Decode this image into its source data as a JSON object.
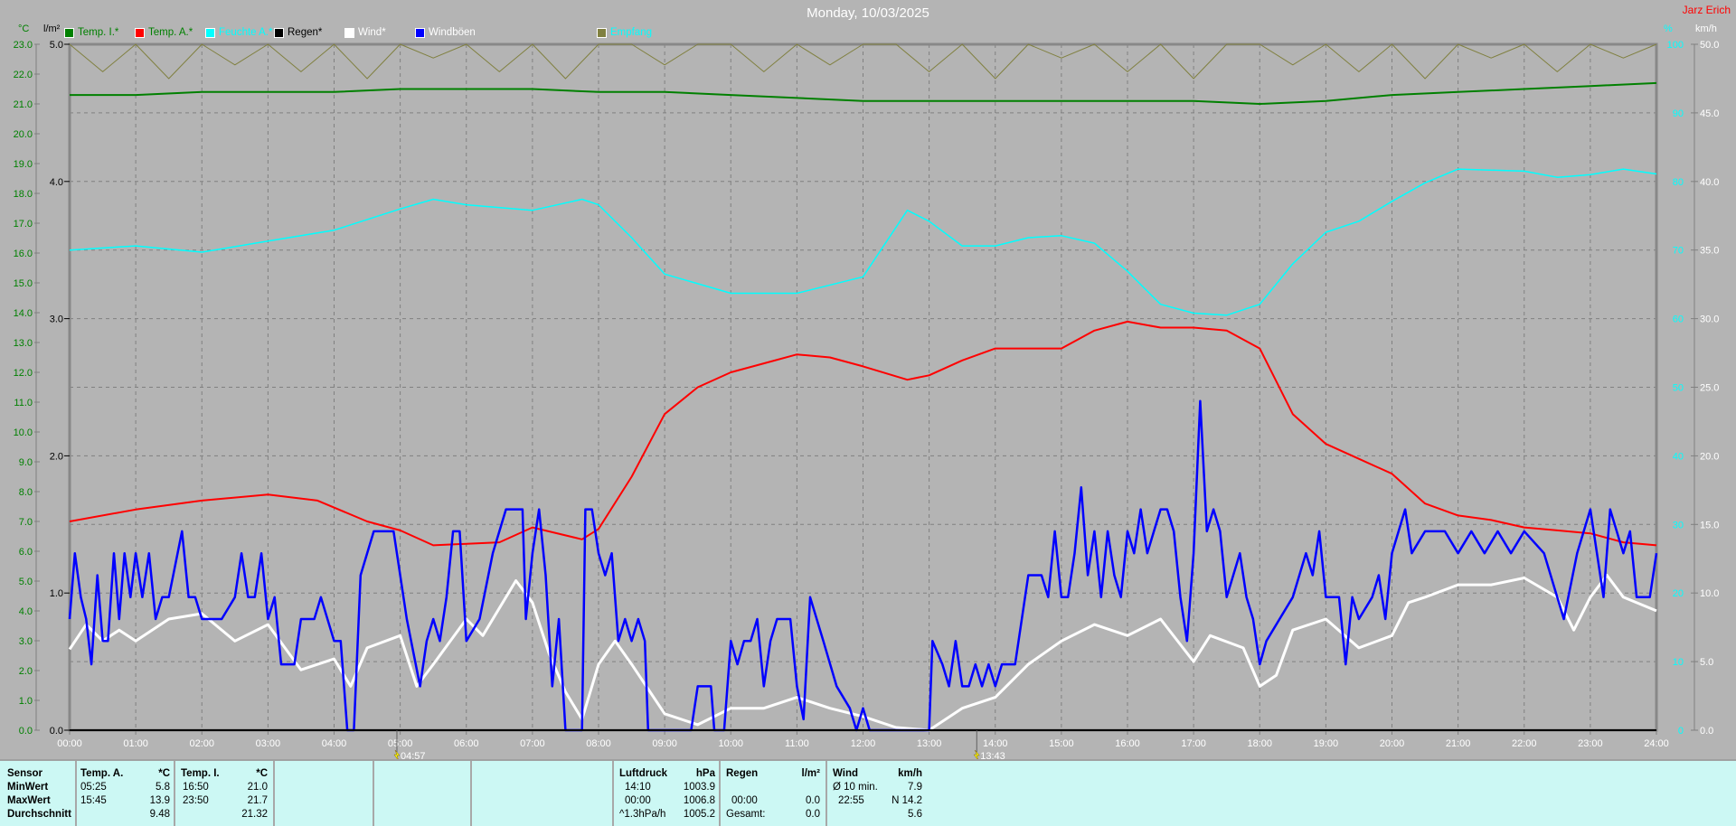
{
  "title": "Monday, 10/03/2025",
  "owner": "Jarz Erich",
  "axes": {
    "temp_unit": "°C",
    "rain_unit": "l/m²",
    "hum_unit": "%",
    "wind_unit": "km/h",
    "temp_range": [
      0,
      23
    ],
    "rain_range": [
      0,
      5
    ],
    "hum_range": [
      0,
      100
    ],
    "wind_range": [
      0,
      50
    ],
    "x_ticks": [
      "00:00",
      "01:00",
      "02:00",
      "03:00",
      "04:00",
      "05:00",
      "06:00",
      "07:00",
      "08:00",
      "09:00",
      "10:00",
      "11:00",
      "12:00",
      "13:00",
      "14:00",
      "15:00",
      "16:00",
      "17:00",
      "18:00",
      "19:00",
      "20:00",
      "21:00",
      "22:00",
      "23:00",
      "24:00"
    ]
  },
  "markers": [
    {
      "label": "04:57",
      "hour": 4.95,
      "icon": "lightning-icon"
    },
    {
      "label": "13:43",
      "hour": 13.72,
      "icon": "lightning-icon"
    }
  ],
  "legend": [
    {
      "label": "Temp. I.*",
      "color": "#008000",
      "text_color": "#008000"
    },
    {
      "label": "Temp. A.*",
      "color": "#ff0000",
      "text_color": "#008000"
    },
    {
      "label": "Feuchte A.*",
      "color": "#00ffff",
      "text_color": "#00ffff"
    },
    {
      "label": "Regen*",
      "color": "#000000",
      "text_color": "#000000"
    },
    {
      "label": "Wind*",
      "color": "#ffffff",
      "text_color": "#ffffff"
    },
    {
      "label": "Windböen",
      "color": "#0000ff",
      "text_color": "#ffffff"
    },
    {
      "label": "Empfang",
      "color": "#808040",
      "text_color": "#00ffff"
    }
  ],
  "chart_data": {
    "type": "line",
    "x_unit": "hour of day",
    "series": [
      {
        "name": "Temp. I.*",
        "axis": "temp",
        "color": "#008000",
        "x": [
          0,
          1,
          2,
          3,
          4,
          5,
          6,
          7,
          8,
          9,
          10,
          11,
          12,
          13,
          14,
          15,
          16,
          17,
          18,
          19,
          20,
          21,
          22,
          23,
          24
        ],
        "y": [
          21.3,
          21.3,
          21.4,
          21.4,
          21.4,
          21.5,
          21.5,
          21.5,
          21.4,
          21.4,
          21.3,
          21.2,
          21.1,
          21.1,
          21.1,
          21.1,
          21.1,
          21.1,
          21.0,
          21.1,
          21.3,
          21.4,
          21.5,
          21.6,
          21.7
        ]
      },
      {
        "name": "Temp. A.*",
        "axis": "temp",
        "color": "#ff0000",
        "x": [
          0,
          1,
          2,
          3,
          3.75,
          4.5,
          5,
          5.5,
          6.5,
          7,
          7.75,
          8,
          8.5,
          9,
          9.5,
          10,
          10.5,
          11,
          11.5,
          12,
          12.67,
          13,
          13.5,
          14,
          14.5,
          15,
          15.5,
          16,
          16.5,
          17,
          17.5,
          18,
          18.5,
          19,
          19.5,
          20,
          20.5,
          21,
          21.5,
          22,
          22.5,
          23,
          23.5,
          24
        ],
        "y": [
          7.0,
          7.4,
          7.7,
          7.9,
          7.7,
          7.0,
          6.7,
          6.2,
          6.3,
          6.8,
          6.4,
          6.75,
          8.5,
          10.6,
          11.5,
          12.0,
          12.3,
          12.6,
          12.5,
          12.2,
          11.75,
          11.9,
          12.4,
          12.8,
          12.8,
          12.8,
          13.4,
          13.7,
          13.5,
          13.5,
          13.4,
          12.8,
          10.6,
          9.6,
          9.1,
          8.6,
          7.6,
          7.2,
          7.05,
          6.8,
          6.7,
          6.6,
          6.3,
          6.2
        ]
      },
      {
        "name": "Feuchte A.*",
        "axis": "hum",
        "color": "#00ffff",
        "x": [
          0,
          1,
          2,
          3,
          4,
          5,
          5.5,
          6,
          7,
          7.75,
          8,
          8.5,
          9,
          10,
          11,
          12,
          12.67,
          13,
          13.5,
          14,
          14.5,
          15,
          15.5,
          16,
          16.5,
          17,
          17.5,
          18,
          18.5,
          19,
          19.5,
          20,
          20.5,
          21,
          22,
          22.5,
          23,
          23.5,
          24
        ],
        "y": [
          70,
          70.6,
          69.7,
          71.3,
          72.9,
          76,
          77.4,
          76.6,
          75.8,
          77.4,
          76.6,
          71.8,
          66.5,
          63.7,
          63.7,
          66.1,
          75.8,
          74.2,
          70.6,
          70.6,
          71.8,
          72.1,
          71,
          66.9,
          62.1,
          60.8,
          60.5,
          62.1,
          68,
          72.6,
          74.2,
          77.1,
          79.8,
          81.8,
          81.5,
          80.6,
          81,
          81.8,
          81.1
        ]
      },
      {
        "name": "Wind*",
        "axis": "wind",
        "color": "#ffffff",
        "x": [
          0,
          0.25,
          0.5,
          0.75,
          1,
          1.5,
          2,
          2.5,
          3,
          3.5,
          4,
          4.25,
          4.5,
          5,
          5.25,
          5.5,
          6,
          6.25,
          6.75,
          7,
          7.25,
          7.5,
          7.75,
          8,
          8.25,
          8.5,
          9,
          9.5,
          10,
          10.5,
          11,
          11.5,
          12,
          12.5,
          13,
          13.25,
          13.5,
          14,
          14.5,
          15,
          15.5,
          16,
          16.5,
          17,
          17.25,
          17.75,
          18,
          18.25,
          18.5,
          19,
          19.5,
          20,
          20.25,
          20.5,
          21,
          21.5,
          22,
          22.5,
          22.75,
          23,
          23.25,
          23.5,
          24
        ],
        "y": [
          5.9,
          7.7,
          6.5,
          7.3,
          6.5,
          8.1,
          8.5,
          6.5,
          7.7,
          4.4,
          5.2,
          3.2,
          6.0,
          6.9,
          3.2,
          4.8,
          8.1,
          6.9,
          10.9,
          9.3,
          5.6,
          2.8,
          0.8,
          4.8,
          6.5,
          4.8,
          1.2,
          0.4,
          1.6,
          1.6,
          2.4,
          1.6,
          1.0,
          0.2,
          0,
          0.8,
          1.6,
          2.4,
          4.8,
          6.5,
          7.7,
          6.9,
          8.1,
          5.0,
          6.9,
          6.0,
          3.2,
          4.0,
          7.3,
          8.1,
          6.0,
          6.9,
          9.3,
          9.7,
          10.6,
          10.6,
          11.1,
          9.7,
          7.3,
          9.7,
          11.3,
          9.7,
          8.7
        ]
      },
      {
        "name": "Windböen",
        "axis": "wind",
        "color": "#0000ff",
        "x": [
          0,
          0.08,
          0.17,
          0.25,
          0.33,
          0.42,
          0.5,
          0.58,
          0.67,
          0.75,
          0.83,
          0.92,
          1.0,
          1.1,
          1.2,
          1.3,
          1.4,
          1.5,
          1.7,
          1.8,
          1.9,
          2.0,
          2.3,
          2.5,
          2.6,
          2.7,
          2.8,
          2.9,
          3.0,
          3.1,
          3.2,
          3.4,
          3.5,
          3.7,
          3.8,
          4.0,
          4.1,
          4.2,
          4.3,
          4.4,
          4.6,
          4.9,
          5.1,
          5.3,
          5.4,
          5.5,
          5.6,
          5.7,
          5.8,
          5.9,
          6.0,
          6.2,
          6.4,
          6.5,
          6.6,
          6.85,
          6.9,
          7.0,
          7.1,
          7.2,
          7.3,
          7.4,
          7.5,
          7.75,
          7.8,
          7.9,
          8.0,
          8.1,
          8.2,
          8.3,
          8.4,
          8.5,
          8.6,
          8.7,
          8.75,
          9.4,
          9.5,
          9.7,
          9.75,
          9.9,
          10.0,
          10.1,
          10.2,
          10.3,
          10.4,
          10.5,
          10.6,
          10.7,
          10.9,
          11.0,
          11.1,
          11.2,
          11.4,
          11.6,
          11.8,
          11.9,
          12.0,
          12.1,
          13.0,
          13.05,
          13.2,
          13.3,
          13.4,
          13.5,
          13.6,
          13.7,
          13.8,
          13.9,
          14.0,
          14.1,
          14.3,
          14.5,
          14.7,
          14.8,
          14.9,
          15.0,
          15.1,
          15.2,
          15.3,
          15.4,
          15.5,
          15.6,
          15.7,
          15.8,
          15.9,
          16.0,
          16.1,
          16.2,
          16.3,
          16.4,
          16.5,
          16.6,
          16.7,
          16.8,
          16.9,
          17.0,
          17.1,
          17.2,
          17.3,
          17.4,
          17.5,
          17.6,
          17.7,
          17.8,
          17.9,
          18.0,
          18.1,
          18.3,
          18.5,
          18.7,
          18.8,
          18.9,
          19.0,
          19.2,
          19.3,
          19.4,
          19.5,
          19.7,
          19.8,
          19.9,
          20.0,
          20.2,
          20.3,
          20.5,
          20.8,
          21.0,
          21.2,
          21.4,
          21.6,
          21.8,
          22.0,
          22.3,
          22.5,
          22.6,
          22.8,
          23.0,
          23.1,
          23.2,
          23.3,
          23.5,
          23.6,
          23.7,
          23.9,
          24.0
        ],
        "y": [
          8.1,
          12.9,
          9.7,
          8.1,
          4.8,
          11.3,
          6.5,
          6.5,
          12.9,
          8.1,
          12.9,
          9.7,
          12.9,
          9.7,
          12.9,
          8.1,
          9.7,
          9.7,
          14.5,
          9.7,
          9.7,
          8.1,
          8.1,
          9.7,
          12.9,
          9.7,
          9.7,
          12.9,
          8.1,
          9.7,
          4.8,
          4.8,
          8.1,
          8.1,
          9.7,
          6.5,
          6.5,
          0,
          0,
          11.3,
          14.5,
          14.5,
          8.1,
          3.2,
          6.5,
          8.1,
          6.5,
          9.7,
          14.5,
          14.5,
          6.5,
          8.1,
          12.9,
          14.5,
          16.1,
          16.1,
          8.1,
          12.9,
          16.1,
          11.3,
          3.2,
          8.1,
          0,
          0,
          16.1,
          16.1,
          12.9,
          11.3,
          12.9,
          6.5,
          8.1,
          6.5,
          8.1,
          6.5,
          0,
          0,
          3.2,
          3.2,
          0,
          0,
          6.5,
          4.8,
          6.5,
          6.5,
          8.1,
          3.2,
          6.5,
          8.1,
          8.1,
          3.2,
          0.8,
          9.7,
          6.5,
          3.2,
          1.6,
          0,
          1.6,
          0,
          0,
          6.5,
          4.8,
          3.2,
          6.5,
          3.2,
          3.2,
          4.8,
          3.2,
          4.8,
          3.2,
          4.8,
          4.8,
          11.3,
          11.3,
          9.7,
          14.5,
          9.7,
          9.7,
          12.9,
          17.7,
          11.3,
          14.5,
          9.7,
          14.5,
          11.3,
          9.7,
          14.5,
          12.9,
          16.1,
          12.9,
          14.5,
          16.1,
          16.1,
          14.5,
          9.7,
          6.5,
          12.9,
          24.0,
          14.5,
          16.1,
          14.5,
          9.7,
          11.3,
          12.9,
          9.7,
          8.1,
          4.8,
          6.5,
          8.1,
          9.7,
          12.9,
          11.3,
          14.5,
          9.7,
          9.7,
          4.8,
          9.7,
          8.1,
          9.7,
          11.3,
          8.1,
          12.9,
          16.1,
          12.9,
          14.5,
          14.5,
          12.9,
          14.5,
          12.9,
          14.5,
          12.9,
          14.5,
          12.9,
          9.7,
          8.1,
          12.9,
          16.1,
          12.9,
          9.7,
          16.1,
          12.9,
          14.5,
          9.7,
          9.7,
          12.9
        ]
      },
      {
        "name": "Empfang",
        "axis": "hum",
        "color": "#808040",
        "x": [
          0,
          0.5,
          1,
          1.5,
          2,
          2.5,
          3,
          3.5,
          4,
          4.5,
          5,
          5.5,
          6,
          6.5,
          7,
          7.5,
          8,
          8.5,
          9,
          9.5,
          10,
          10.5,
          11,
          11.5,
          12,
          12.5,
          13,
          13.5,
          14,
          14.5,
          15,
          15.5,
          16,
          16.5,
          17,
          17.5,
          18,
          18.5,
          19,
          19.5,
          20,
          20.5,
          21,
          21.5,
          22,
          22.5,
          23,
          23.5,
          24
        ],
        "y": [
          100,
          96,
          100,
          95,
          100,
          97,
          100,
          96,
          100,
          95,
          100,
          98,
          100,
          96,
          100,
          95,
          100,
          100,
          97,
          100,
          100,
          96,
          100,
          97,
          100,
          100,
          96,
          100,
          95,
          100,
          98,
          100,
          96,
          100,
          95,
          100,
          100,
          97,
          100,
          96,
          100,
          95,
          100,
          98,
          100,
          96,
          100,
          98,
          100
        ]
      },
      {
        "name": "Regen*",
        "axis": "rain",
        "color": "#000000",
        "x": [
          0,
          24
        ],
        "y": [
          0,
          0
        ]
      }
    ]
  },
  "table": {
    "sensor": {
      "header": "Sensor",
      "min": "MinWert",
      "max": "MaxWert",
      "avg": "Durchschnitt"
    },
    "temp_a": {
      "header": "Temp. A.",
      "unit": "*C",
      "min_time": "05:25",
      "min": "5.8",
      "max_time": "15:45",
      "max": "13.9",
      "avg": "9.48"
    },
    "temp_i": {
      "header": "Temp. I.",
      "unit": "*C",
      "min_time": "16:50",
      "min": "21.0",
      "max_time": "23:50",
      "max": "21.7",
      "avg": "21.32"
    },
    "pressure": {
      "header": "Luftdruck",
      "unit": "hPa",
      "min_time": "14:10",
      "min": "1003.9",
      "max_time": "00:00",
      "max": "1006.8",
      "trend": "^1.3hPa/h",
      "avg": "1005.2"
    },
    "rain": {
      "header": "Regen",
      "unit": "l/m²",
      "max_time": "00:00",
      "max": "0.0",
      "total_label": "Gesamt:",
      "total": "0.0"
    },
    "wind": {
      "header": "Wind",
      "unit": "km/h",
      "avg_label": "Ø 10 min.",
      "avg10": "7.9",
      "max_time": "22:55",
      "max": "N 14.2",
      "avg": "5.6"
    }
  }
}
